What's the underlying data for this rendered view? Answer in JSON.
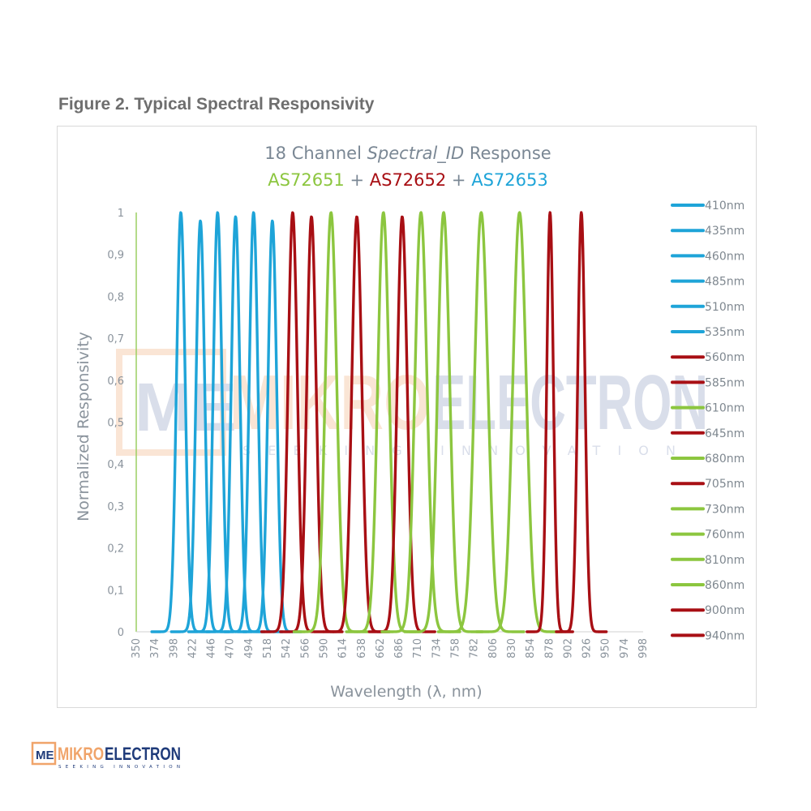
{
  "figure_caption": "Figure 2. Typical Spectral Responsivity",
  "watermark": {
    "brand": "MIKROELECTRON",
    "prefix": "MIKRO",
    "suffix": "ELECTRON",
    "tagline": "SEEKING INNOVATION",
    "mark": "ME"
  },
  "logo": {
    "prefix": "MIKRO",
    "suffix": "ELECTRON",
    "tagline": "SEEKING INNOVATION",
    "mark": "ME"
  },
  "colors": {
    "blue": "#1ea4d8",
    "red": "#a80f14",
    "green": "#8cc63f",
    "title_gray": "#7a8794",
    "brand_orange": "#f0a46a",
    "brand_navy": "#1f3b7a"
  },
  "chart_data": {
    "type": "line",
    "title_line1": {
      "pre": "18 Channel ",
      "italic": "Spectral_ID",
      "post": " Response"
    },
    "title_line2": [
      {
        "text": "AS72651",
        "color": "#8cc63f"
      },
      {
        "text": " + ",
        "color": "#7a8794"
      },
      {
        "text": "AS72652",
        "color": "#a80f14"
      },
      {
        "text": " + ",
        "color": "#7a8794"
      },
      {
        "text": "AS72653",
        "color": "#1ea4d8"
      }
    ],
    "xlabel": "Wavelength (λ, nm)",
    "ylabel": "Normalized Responsivity",
    "xlim": [
      350,
      998
    ],
    "ylim": [
      0,
      1
    ],
    "x_ticks": [
      350,
      374,
      398,
      422,
      446,
      470,
      494,
      518,
      542,
      566,
      590,
      614,
      638,
      662,
      686,
      710,
      734,
      758,
      782,
      806,
      830,
      854,
      878,
      902,
      926,
      950,
      974,
      998
    ],
    "y_ticks": [
      "0",
      "0,1",
      "0,2",
      "0,3",
      "0,4",
      "0,5",
      "0,6",
      "0,7",
      "0,8",
      "0,9",
      "1"
    ],
    "y_tick_values": [
      0,
      0.1,
      0.2,
      0.3,
      0.4,
      0.5,
      0.6,
      0.7,
      0.8,
      0.9,
      1.0
    ],
    "grid": false,
    "legend_position": "right",
    "series": [
      {
        "name": "410nm",
        "color": "#1ea4d8",
        "peak_x": 407,
        "peak_y": 1.0,
        "fwhm": 13
      },
      {
        "name": "435nm",
        "color": "#1ea4d8",
        "peak_x": 432,
        "peak_y": 0.98,
        "fwhm": 13
      },
      {
        "name": "460nm",
        "color": "#1ea4d8",
        "peak_x": 454,
        "peak_y": 1.0,
        "fwhm": 13
      },
      {
        "name": "485nm",
        "color": "#1ea4d8",
        "peak_x": 477,
        "peak_y": 0.99,
        "fwhm": 13
      },
      {
        "name": "510nm",
        "color": "#1ea4d8",
        "peak_x": 500,
        "peak_y": 1.0,
        "fwhm": 13
      },
      {
        "name": "535nm",
        "color": "#1ea4d8",
        "peak_x": 524,
        "peak_y": 0.98,
        "fwhm": 13
      },
      {
        "name": "560nm",
        "color": "#a80f14",
        "peak_x": 550,
        "peak_y": 1.0,
        "fwhm": 14
      },
      {
        "name": "585nm",
        "color": "#a80f14",
        "peak_x": 574,
        "peak_y": 0.99,
        "fwhm": 14
      },
      {
        "name": "610nm",
        "color": "#8cc63f",
        "peak_x": 599,
        "peak_y": 1.0,
        "fwhm": 17
      },
      {
        "name": "645nm",
        "color": "#a80f14",
        "peak_x": 632,
        "peak_y": 0.99,
        "fwhm": 15
      },
      {
        "name": "680nm",
        "color": "#8cc63f",
        "peak_x": 666,
        "peak_y": 1.0,
        "fwhm": 17
      },
      {
        "name": "705nm",
        "color": "#a80f14",
        "peak_x": 690,
        "peak_y": 0.99,
        "fwhm": 15
      },
      {
        "name": "730nm",
        "color": "#8cc63f",
        "peak_x": 714,
        "peak_y": 1.0,
        "fwhm": 18
      },
      {
        "name": "760nm",
        "color": "#8cc63f",
        "peak_x": 743,
        "peak_y": 1.0,
        "fwhm": 18
      },
      {
        "name": "810nm",
        "color": "#8cc63f",
        "peak_x": 791,
        "peak_y": 1.0,
        "fwhm": 20
      },
      {
        "name": "860nm",
        "color": "#8cc63f",
        "peak_x": 840,
        "peak_y": 1.0,
        "fwhm": 20
      },
      {
        "name": "900nm",
        "color": "#a80f14",
        "peak_x": 879,
        "peak_y": 1.0,
        "fwhm": 10
      },
      {
        "name": "940nm",
        "color": "#a80f14",
        "peak_x": 919,
        "peak_y": 1.0,
        "fwhm": 11
      }
    ]
  }
}
